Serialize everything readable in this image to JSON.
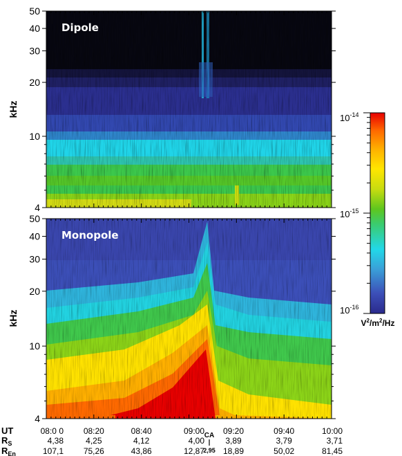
{
  "chart_data": [
    {
      "type": "heatmap",
      "panel_label": "Dipole",
      "ylabel": "kHz",
      "y_scale": "log",
      "ylim": [
        4,
        50
      ],
      "y_ticks": [
        4,
        10,
        20,
        30,
        40,
        50
      ],
      "xlim": [
        "08:00",
        "10:00"
      ]
    },
    {
      "type": "heatmap",
      "panel_label": "Monopole",
      "ylabel": "kHz",
      "y_scale": "log",
      "ylim": [
        4,
        50
      ],
      "y_ticks": [
        4,
        10,
        20,
        30,
        40,
        50
      ],
      "xlim": [
        "08:00",
        "10:00"
      ]
    }
  ],
  "x_axis": {
    "ticks": [
      "08:20",
      "08:40",
      "09:00",
      "09:20",
      "09:40",
      "10:00"
    ],
    "first_tick": "08:0 0",
    "rows": [
      {
        "label": "UT",
        "sub": "",
        "values": [
          "08:0 0",
          "08:20",
          "08:40",
          "09:00",
          "09:20",
          "09:40",
          "10:00"
        ]
      },
      {
        "label": "R",
        "sub": "S",
        "values": [
          "4,38",
          "4,25",
          "4,12",
          "4,00",
          "3,89",
          "3,79",
          "3,71"
        ]
      },
      {
        "label": "R",
        "sub": "En",
        "values": [
          "107,1",
          "75,26",
          "43,86",
          "12,87",
          "18,89",
          "50,02",
          "81,45"
        ]
      }
    ],
    "closest_approach": {
      "label": "CA",
      "value": "2,95",
      "time_fraction": 0.56
    }
  },
  "colorbar": {
    "scale": "log",
    "min_exp": "-16",
    "mid_exp": "-15",
    "max_exp": "-14",
    "base": "10",
    "unit_parts": [
      "V",
      "2",
      "/m",
      "2",
      "/Hz"
    ],
    "colors": [
      "#2a2a8c",
      "#3c4fb8",
      "#3a9fd8",
      "#22d8e8",
      "#3ccb6a",
      "#5ec61e",
      "#c8dc10",
      "#ffe600",
      "#ffb000",
      "#ff6a00",
      "#e80000"
    ]
  }
}
